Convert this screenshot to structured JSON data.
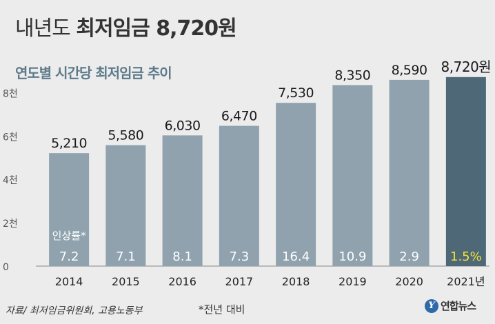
{
  "header": {
    "title_light": "내년도",
    "title_bold": "최저임금 8,720원",
    "subtitle": "연도별 시간당 최저임금 추이"
  },
  "chart_data": {
    "type": "bar",
    "title": "연도별 시간당 최저임금 추이",
    "categories": [
      "2014",
      "2015",
      "2016",
      "2017",
      "2018",
      "2019",
      "2020",
      "2021년"
    ],
    "values": [
      5210,
      5580,
      6030,
      6470,
      7530,
      8350,
      8590,
      8720
    ],
    "value_labels": [
      "5,210",
      "5,580",
      "6,030",
      "6,470",
      "7,530",
      "8,350",
      "8,590",
      "8,720원"
    ],
    "growth_rates": [
      "7.2",
      "7.1",
      "8.1",
      "7.3",
      "16.4",
      "10.9",
      "2.9",
      "1.5%"
    ],
    "growth_label": "인상률*",
    "y_ticks": [
      0,
      2000,
      4000,
      6000,
      8000
    ],
    "y_tick_labels": [
      "0",
      "2천",
      "4천",
      "6천",
      "8천"
    ],
    "ylim": [
      0,
      9000
    ],
    "grid": false,
    "colors": {
      "bar": "#8fa2ae",
      "highlight_bar": "#4e6878",
      "growth_text": "#ffffff",
      "highlight_growth_text": "#f2e335",
      "axis": "#888888"
    }
  },
  "footer": {
    "source": "자료/ 최저임금위원회, 고용노동부",
    "footnote": "*전년 대비",
    "logo_mark": "Y",
    "logo_text": "연합뉴스"
  }
}
